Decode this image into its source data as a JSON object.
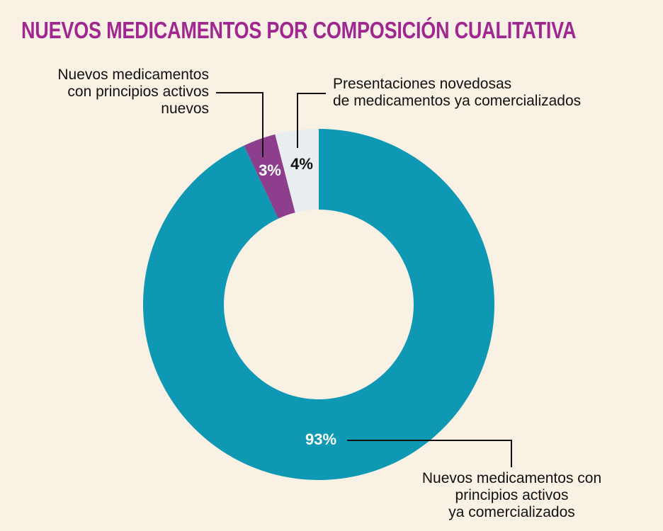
{
  "chart_data": {
    "type": "pie",
    "donut": true,
    "title": "NUEVOS MEDICAMENTOS POR COMPOSICIÓN CUALITATIVA",
    "slices": [
      {
        "label": "Nuevos medicamentos con principios activos ya comercializados",
        "value": 93,
        "value_label": "93%",
        "color": "#0e98b4",
        "text_color": "#ffffff"
      },
      {
        "label": "Nuevos medicamentos con principios activos nuevos",
        "value": 3,
        "value_label": "3%",
        "color": "#8d3f8e",
        "text_color": "#ffffff"
      },
      {
        "label": "Presentaciones novedosas de medicamentos ya comercializados",
        "value": 4,
        "value_label": "4%",
        "color": "#e8edf0",
        "text_color": "#111111"
      }
    ]
  },
  "labels": {
    "a": [
      "Nuevos medicamentos",
      "con principios activos",
      "nuevos"
    ],
    "b": [
      "Presentaciones novedosas",
      "de medicamentos ya comercializados"
    ],
    "c": [
      "Nuevos medicamentos con",
      "principios activos",
      "ya comercializados"
    ]
  },
  "colors": {
    "background": "#faf1e5",
    "title": "#a0278f"
  }
}
